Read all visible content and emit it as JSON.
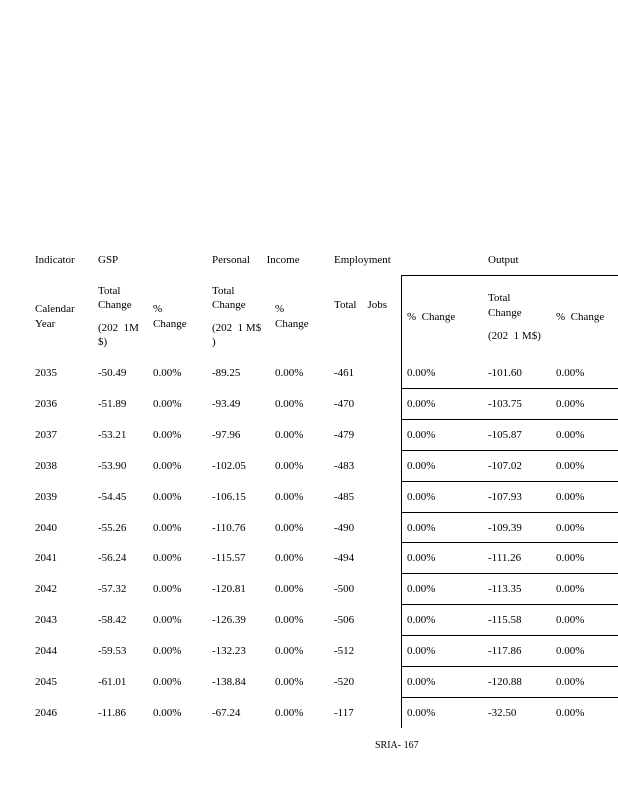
{
  "table": {
    "header": [
      "Indicator",
      "GSP",
      "Personal Income",
      "Employment",
      "Output"
    ],
    "subheader": [
      [
        "Calendar",
        "Year"
      ],
      [
        "Total",
        "Change",
        "(202  1M",
        "$)"
      ],
      [
        "%",
        "Change"
      ],
      [
        "Total",
        "Change",
        "(202  1 M$",
        ")"
      ],
      [
        "%",
        "Change"
      ],
      [
        "Total    Jobs"
      ],
      [
        "%  Change"
      ],
      [
        "Total",
        "Change",
        "(202  1 M$)"
      ],
      [
        "%  Change"
      ]
    ],
    "rows": [
      [
        "2035",
        "-50.49",
        "0.00%",
        "-89.25",
        "0.00%",
        "-461",
        "0.00%",
        "-101.60",
        "0.00%"
      ],
      [
        "2036",
        "-51.89",
        "0.00%",
        "-93.49",
        "0.00%",
        "-470",
        "0.00%",
        "-103.75",
        "0.00%"
      ],
      [
        "2037",
        "-53.21",
        "0.00%",
        "-97.96",
        "0.00%",
        "-479",
        "0.00%",
        "-105.87",
        "0.00%"
      ],
      [
        "2038",
        "-53.90",
        "0.00%",
        "-102.05",
        "0.00%",
        "-483",
        "0.00%",
        "-107.02",
        "0.00%"
      ],
      [
        "2039",
        "-54.45",
        "0.00%",
        "-106.15",
        "0.00%",
        "-485",
        "0.00%",
        "-107.93",
        "0.00%"
      ],
      [
        "2040",
        "-55.26",
        "0.00%",
        "-110.76",
        "0.00%",
        "-490",
        "0.00%",
        "-109.39",
        "0.00%"
      ],
      [
        "2041",
        "-56.24",
        "0.00%",
        "-115.57",
        "0.00%",
        "-494",
        "0.00%",
        "-111.26",
        "0.00%"
      ],
      [
        "2042",
        "-57.32",
        "0.00%",
        "-120.81",
        "0.00%",
        "-500",
        "0.00%",
        "-113.35",
        "0.00%"
      ],
      [
        "2043",
        "-58.42",
        "0.00%",
        "-126.39",
        "0.00%",
        "-506",
        "0.00%",
        "-115.58",
        "0.00%"
      ],
      [
        "2044",
        "-59.53",
        "0.00%",
        "-132.23",
        "0.00%",
        "-512",
        "0.00%",
        "-117.86",
        "0.00%"
      ],
      [
        "2045",
        "-61.01",
        "0.00%",
        "-138.84",
        "0.00%",
        "-520",
        "0.00%",
        "-120.88",
        "0.00%"
      ],
      [
        "2046",
        "-11.86",
        "0.00%",
        "-67.24",
        "0.00%",
        "-117",
        "0.00%",
        "-32.50",
        "0.00%"
      ]
    ]
  },
  "footer": "SRIA- 167"
}
